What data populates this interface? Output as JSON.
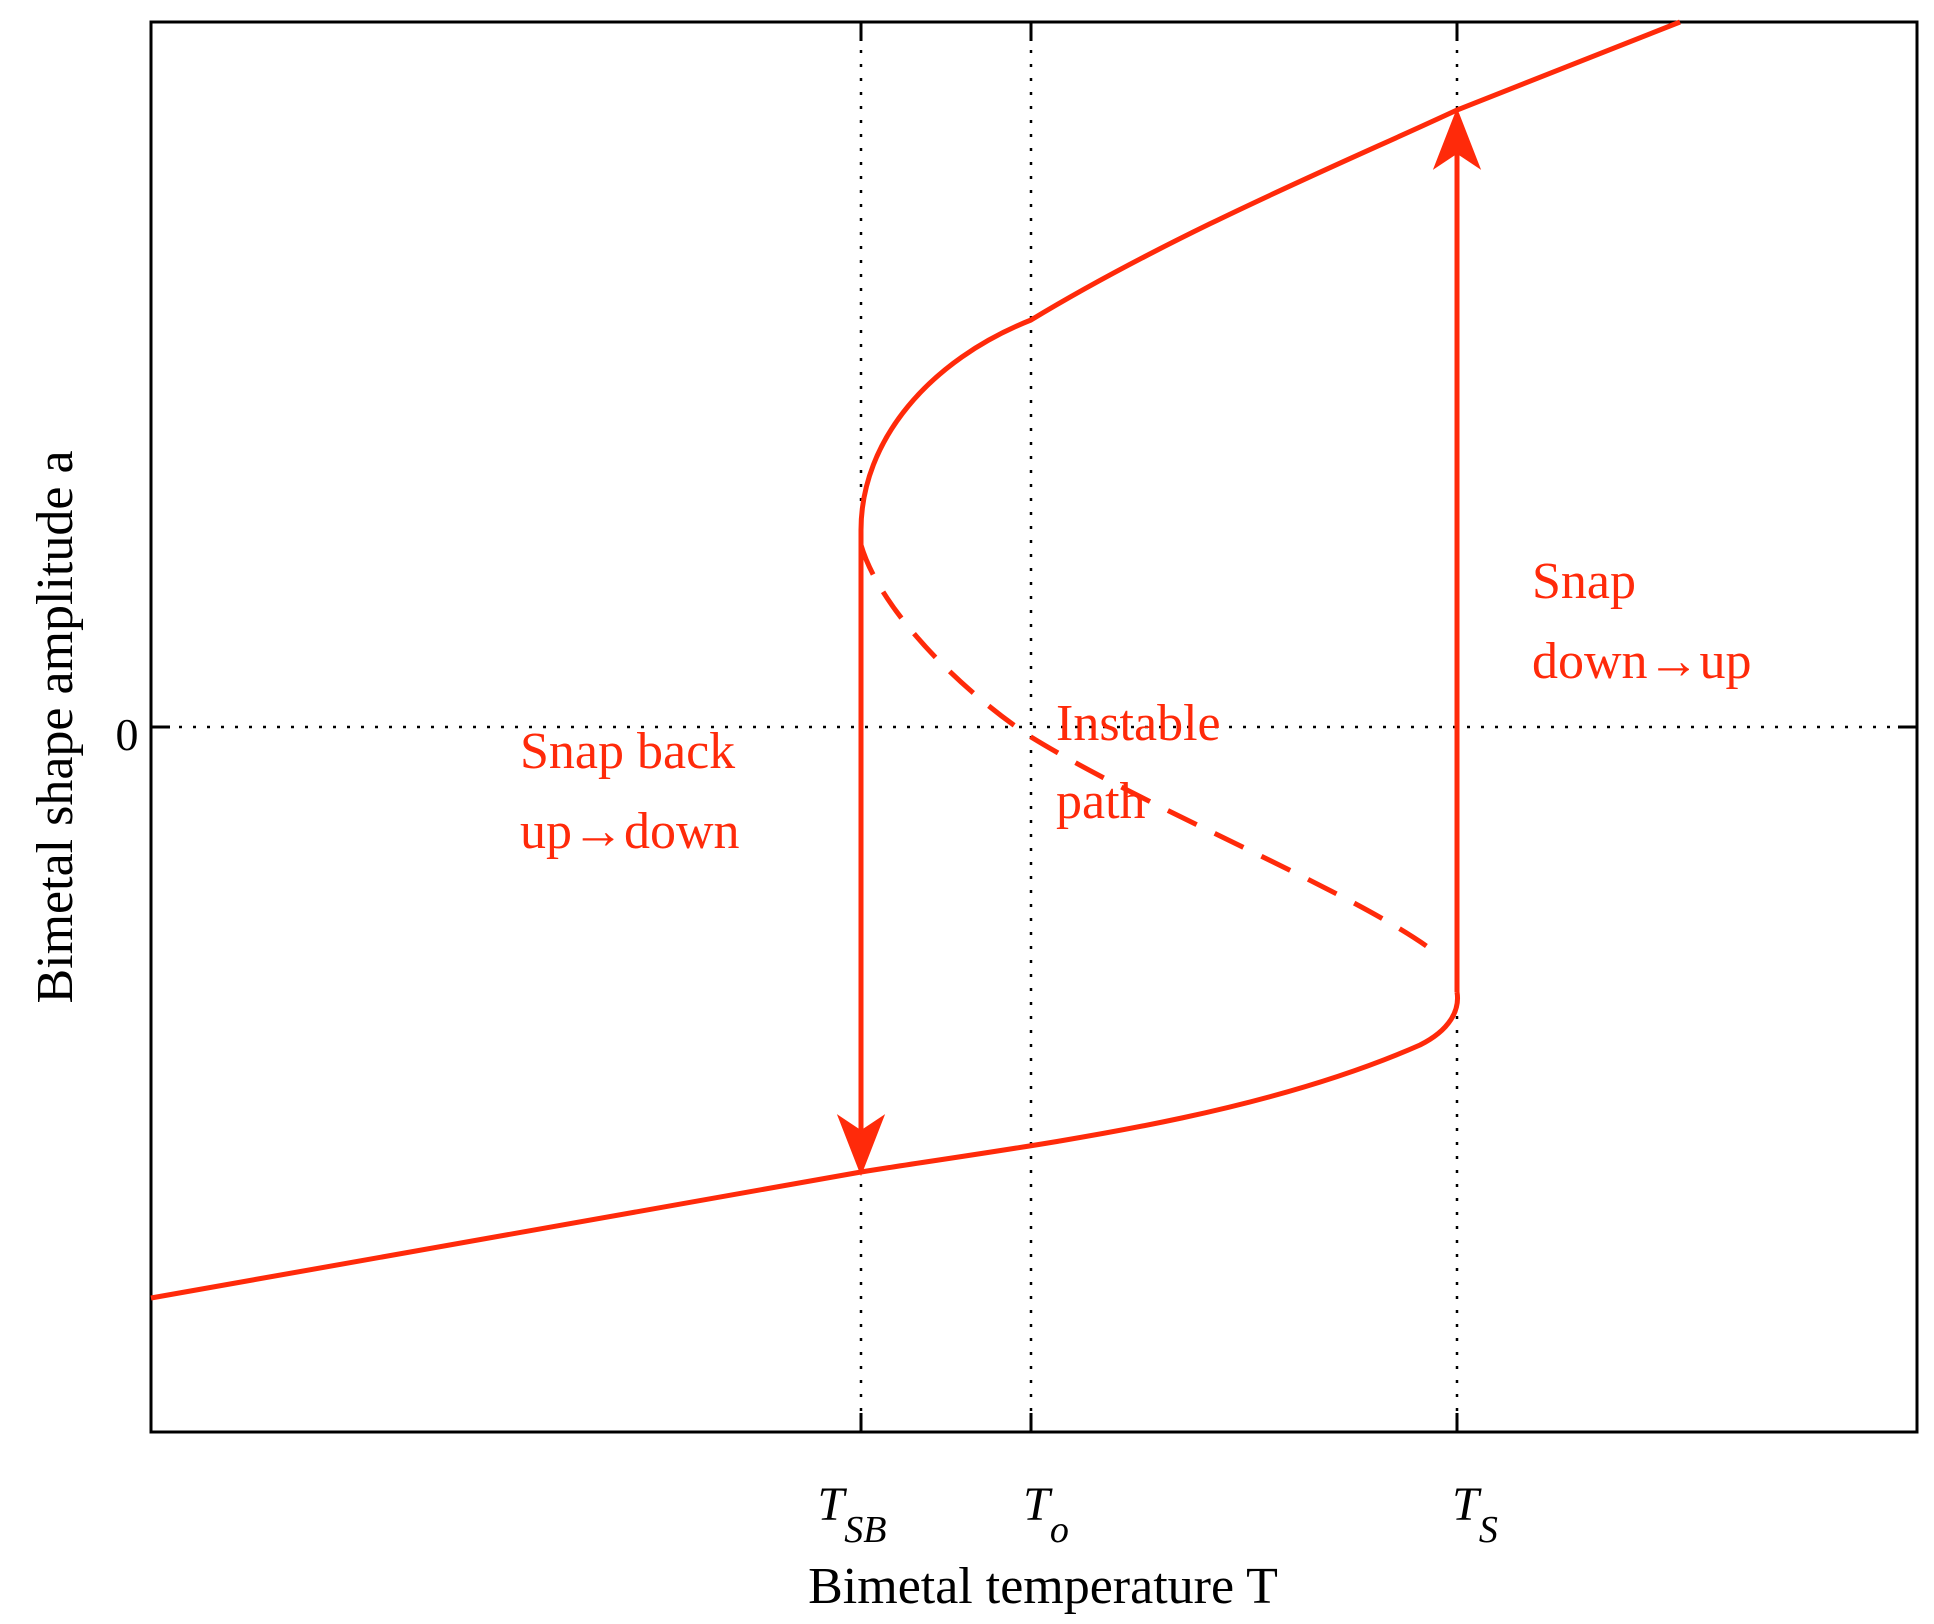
{
  "colors": {
    "curve": "#ff2a0a",
    "axis": "#000000",
    "guide": "#000000",
    "background": "#ffffff"
  },
  "axes": {
    "xlabel": "Bimetal temperature T",
    "ylabel": "Bimetal shape amplitude a",
    "yticks": [
      "0"
    ],
    "xticks": [
      {
        "base": "T",
        "sub": "SB"
      },
      {
        "base": "T",
        "sub": "o"
      },
      {
        "base": "T",
        "sub": "S"
      }
    ]
  },
  "annotations": {
    "snap_back_line1": "Snap back",
    "snap_back_line2": "up→down",
    "instable_line1": "Instable",
    "instable_line2": "path",
    "snap_up_line1": "Snap",
    "snap_up_line2": "down→up"
  },
  "paths": {
    "stable_upper": "stable",
    "instable_middle": "instable (dashed)",
    "stable_lower": "stable",
    "snap_back_arrow": "down",
    "snap_up_arrow": "up"
  }
}
